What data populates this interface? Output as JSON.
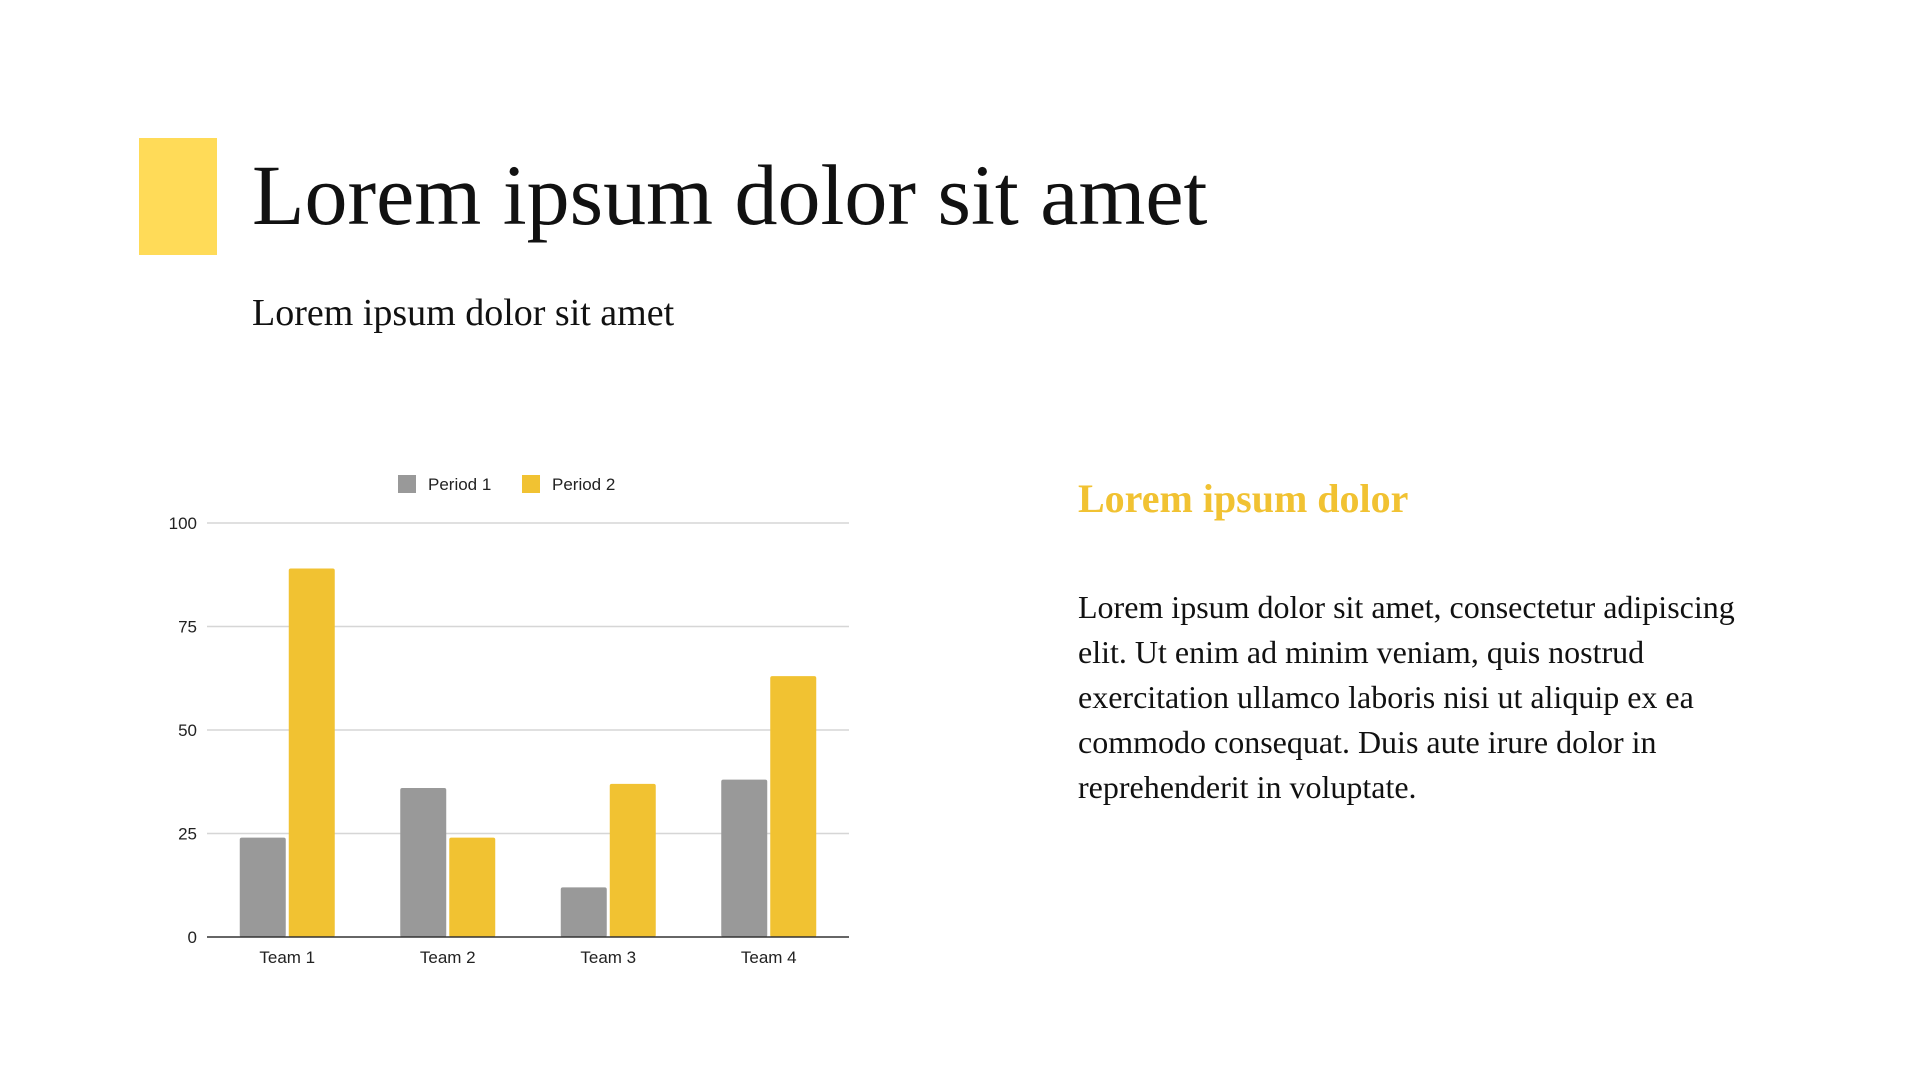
{
  "slide": {
    "title": "Lorem ipsum dolor sit amet",
    "subtitle": "Lorem ipsum dolor sit amet",
    "side_heading": "Lorem ipsum dolor",
    "side_body": "Lorem ipsum dolor sit amet, consectetur adipiscing elit. Ut enim ad minim veniam, quis nostrud exercitation ullamco laboris nisi ut aliquip ex ea commodo consequat. Duis aute irure dolor in reprehenderit in voluptate."
  },
  "colors": {
    "accent": "#FFDB58",
    "heading": "#F1C232"
  },
  "chart_data": {
    "type": "bar",
    "categories": [
      "Team 1",
      "Team 2",
      "Team 3",
      "Team 4"
    ],
    "series": [
      {
        "name": "Period 1",
        "values": [
          24,
          36,
          12,
          38
        ],
        "color": "#999999"
      },
      {
        "name": "Period 2",
        "values": [
          89,
          24,
          37,
          63
        ],
        "color": "#F1C232"
      }
    ],
    "ylim": [
      0,
      100
    ],
    "yticks": [
      0,
      25,
      50,
      75,
      100
    ],
    "grid": true,
    "legend": "top"
  }
}
